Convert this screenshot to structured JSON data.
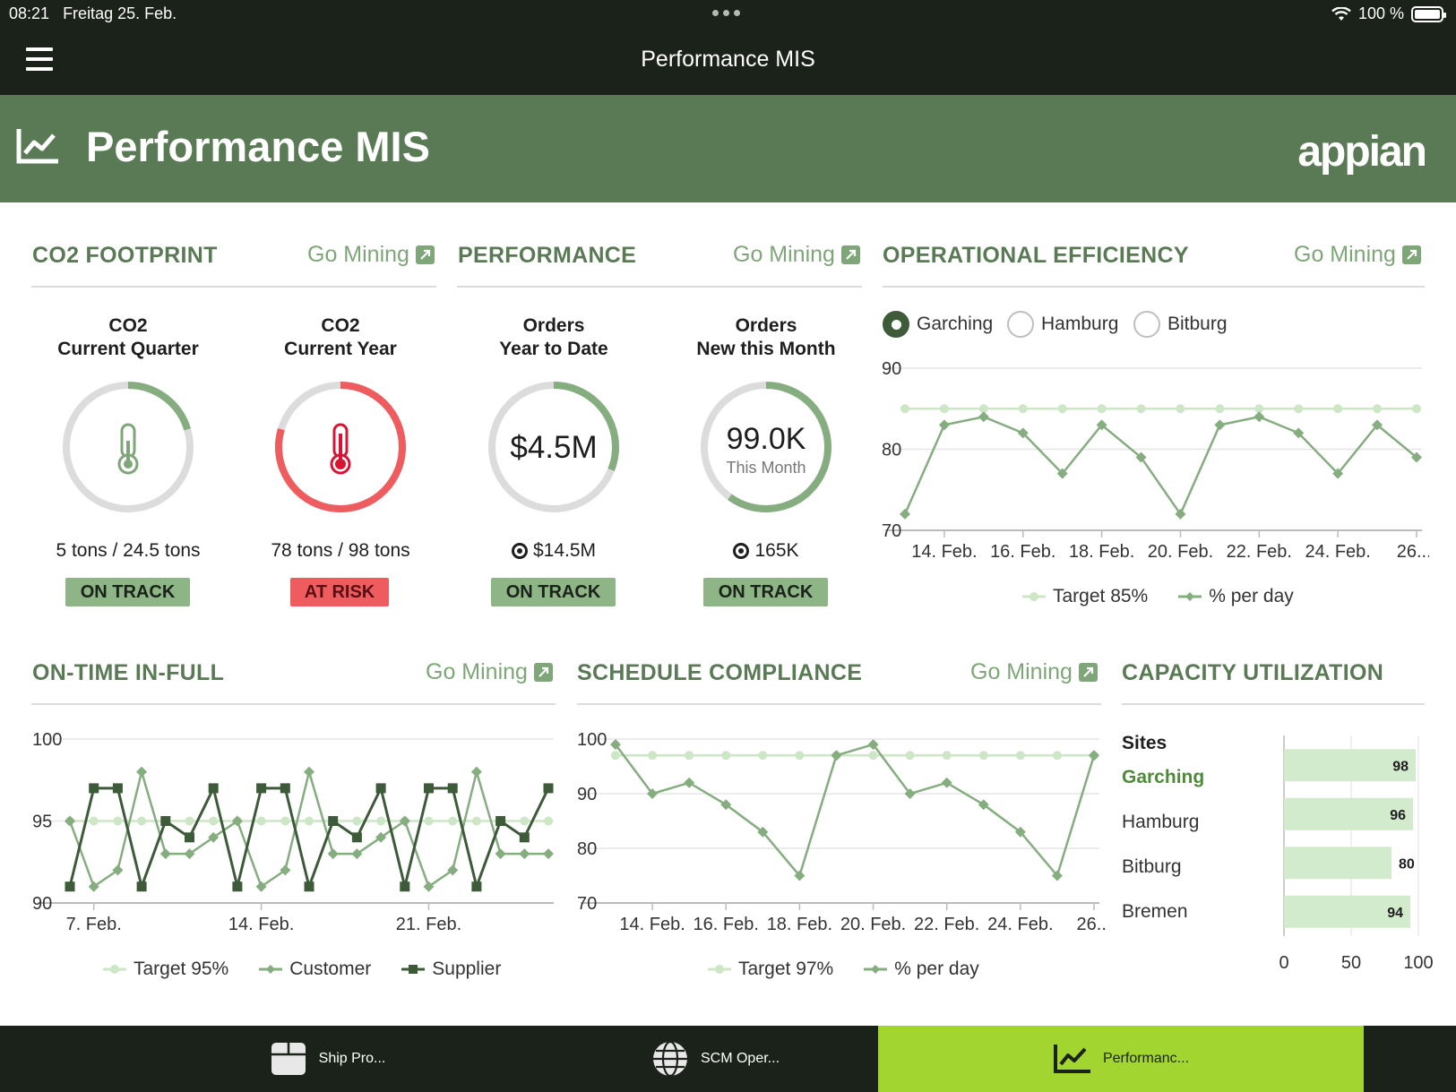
{
  "status_bar": {
    "time": "08:21",
    "date": "Freitag 25. Feb.",
    "battery": "100 %"
  },
  "nav": {
    "title": "Performance MIS"
  },
  "banner": {
    "title": "Performance MIS",
    "logo": "appian"
  },
  "go_mining_label": "Go Mining",
  "co2": {
    "title": "CO2 FOOTPRINT",
    "quarter": {
      "label_line1": "CO2",
      "label_line2": "Current Quarter",
      "value": "5 tons / 24.5 tons",
      "status": "ON TRACK",
      "progress": 0.204
    },
    "year": {
      "label_line1": "CO2",
      "label_line2": "Current Year",
      "value": "78 tons / 98 tons",
      "status": "AT RISK",
      "progress": 0.796
    }
  },
  "performance": {
    "title": "PERFORMANCE",
    "ytd": {
      "label_line1": "Orders",
      "label_line2": "Year to Date",
      "center": "$4.5M",
      "target": "$14.5M",
      "status": "ON TRACK",
      "progress": 0.31
    },
    "month": {
      "label_line1": "Orders",
      "label_line2": "New this Month",
      "center": "99.0K",
      "center_sub": "This Month",
      "target": "165K",
      "status": "ON TRACK",
      "progress": 0.6
    }
  },
  "op_eff": {
    "title": "OPERATIONAL EFFICIENCY",
    "radios": [
      "Garching",
      "Hamburg",
      "Bitburg"
    ],
    "selected": "Garching",
    "legend": [
      "Target 85%",
      "% per day"
    ]
  },
  "otif": {
    "title": "ON-TIME IN-FULL",
    "legend": [
      "Target 95%",
      "Customer",
      "Supplier"
    ]
  },
  "schedule": {
    "title": "SCHEDULE COMPLIANCE",
    "legend": [
      "Target 97%",
      "% per day"
    ]
  },
  "capacity": {
    "title": "CAPACITY UTILIZATION",
    "header": "Sites",
    "sites": [
      "Garching",
      "Hamburg",
      "Bitburg",
      "Bremen"
    ],
    "selected": "Garching"
  },
  "tabs": [
    {
      "label": "Ship Pro..."
    },
    {
      "label": "SCM Oper..."
    },
    {
      "label": "Performanc..."
    }
  ],
  "colors": {
    "dark": "#1b2219",
    "brand": "#5a7a55",
    "accent": "#a2d530",
    "ok": "#8db585",
    "risk": "#ee5c5f",
    "line": "#86ad80",
    "target": "#cde6c6",
    "supplier": "#3d5a39"
  },
  "chart_data": [
    {
      "type": "line",
      "title": "OPERATIONAL EFFICIENCY",
      "x": [
        "13. Feb.",
        "14. Feb.",
        "15. Feb.",
        "16. Feb.",
        "17. Feb.",
        "18. Feb.",
        "19. Feb.",
        "20. Feb.",
        "21. Feb.",
        "22. Feb.",
        "23. Feb.",
        "24. Feb.",
        "25. Feb.",
        "26. Feb."
      ],
      "xticks": [
        "14. Feb.",
        "16. Feb.",
        "18. Feb.",
        "20. Feb.",
        "22. Feb.",
        "24. Feb.",
        "26...."
      ],
      "series": [
        {
          "name": "Target 85%",
          "values": [
            85,
            85,
            85,
            85,
            85,
            85,
            85,
            85,
            85,
            85,
            85,
            85,
            85,
            85
          ]
        },
        {
          "name": "% per day",
          "values": [
            72,
            83,
            84,
            82,
            77,
            83,
            79,
            72,
            83,
            84,
            82,
            77,
            83,
            79
          ]
        }
      ],
      "ylim": [
        70,
        90
      ],
      "yticks": [
        70,
        80,
        90
      ],
      "grid": true
    },
    {
      "type": "line",
      "title": "ON-TIME IN-FULL",
      "x": [
        "1",
        "2",
        "3",
        "4",
        "5",
        "6",
        "7",
        "8",
        "9",
        "10",
        "11",
        "12",
        "13",
        "14",
        "15",
        "16",
        "17",
        "18",
        "19",
        "20",
        "21"
      ],
      "xticks": [
        "7. Feb.",
        "14. Feb.",
        "21. Feb."
      ],
      "series": [
        {
          "name": "Target 95%",
          "values": [
            95,
            95,
            95,
            95,
            95,
            95,
            95,
            95,
            95,
            95,
            95,
            95,
            95,
            95,
            95,
            95,
            95,
            95,
            95,
            95,
            95
          ]
        },
        {
          "name": "Customer",
          "values": [
            95,
            91,
            92,
            98,
            93,
            93,
            94,
            95,
            91,
            92,
            98,
            93,
            93,
            94,
            95,
            91,
            92,
            98,
            93,
            93,
            93
          ]
        },
        {
          "name": "Supplier",
          "values": [
            91,
            97,
            97,
            91,
            95,
            94,
            97,
            91,
            97,
            97,
            91,
            95,
            94,
            97,
            91,
            97,
            97,
            91,
            95,
            94,
            97
          ]
        }
      ],
      "ylim": [
        90,
        100
      ],
      "yticks": [
        90,
        95,
        100
      ],
      "grid": true
    },
    {
      "type": "line",
      "title": "SCHEDULE COMPLIANCE",
      "x": [
        "13. Feb.",
        "14. Feb.",
        "15. Feb.",
        "16. Feb.",
        "17. Feb.",
        "18. Feb.",
        "19. Feb.",
        "20. Feb.",
        "21. Feb.",
        "22. Feb.",
        "23. Feb.",
        "24. Feb.",
        "25. Feb.",
        "26. Feb."
      ],
      "xticks": [
        "14. Feb.",
        "16. Feb.",
        "18. Feb.",
        "20. Feb.",
        "22. Feb.",
        "24. Feb.",
        "26..."
      ],
      "series": [
        {
          "name": "Target 97%",
          "values": [
            97,
            97,
            97,
            97,
            97,
            97,
            97,
            97,
            97,
            97,
            97,
            97,
            97,
            97
          ]
        },
        {
          "name": "% per day",
          "values": [
            99,
            90,
            92,
            88,
            83,
            75,
            97,
            99,
            90,
            92,
            88,
            83,
            75,
            97
          ]
        }
      ],
      "ylim": [
        70,
        100
      ],
      "yticks": [
        70,
        80,
        90,
        100
      ],
      "grid": true
    },
    {
      "type": "bar",
      "title": "CAPACITY UTILIZATION",
      "orientation": "horizontal",
      "categories": [
        "Garching",
        "Hamburg",
        "Bitburg",
        "Bremen"
      ],
      "values": [
        98,
        96,
        80,
        94
      ],
      "xlim": [
        0,
        100
      ],
      "xticks": [
        0,
        50,
        100
      ]
    }
  ]
}
